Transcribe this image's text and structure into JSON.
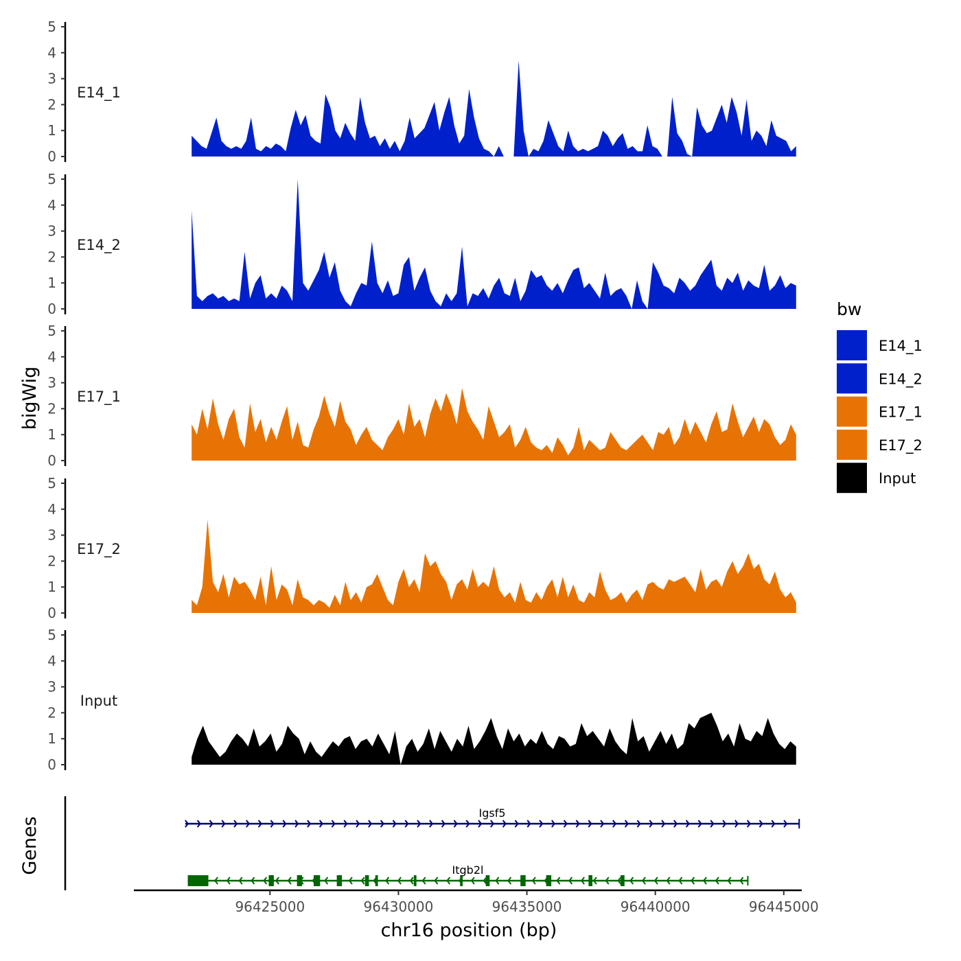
{
  "colors": {
    "E14": "#0020cc",
    "E17": "#e87305",
    "Input": "#000000",
    "gene_igsf5": "#00007a",
    "gene_itgb2l": "#006600"
  },
  "chart_data": {
    "type": "area",
    "title": "",
    "ylabel": "bigWig",
    "genes_label": "Genes",
    "xlabel": "chr16 position (bp)",
    "xlim": [
      96419700,
      96445700
    ],
    "ylim": [
      0,
      5.2
    ],
    "x_ticks": [
      96425000,
      96430000,
      96435000,
      96440000,
      96445000
    ],
    "x_tick_labels": [
      "96425000",
      "96430000",
      "96435000",
      "96440000",
      "96445000"
    ],
    "y_ticks": [
      0,
      1,
      2,
      3,
      4,
      5
    ],
    "y_tick_labels": [
      "0",
      "1",
      "2",
      "3",
      "4",
      "5"
    ],
    "x_start": 96421950,
    "x_end": 96445480,
    "series": [
      {
        "name": "E14_1",
        "group": "E14",
        "start": 96421950,
        "values": [
          0.8,
          0.6,
          0.4,
          0.3,
          0.9,
          1.5,
          0.6,
          0.4,
          0.3,
          0.4,
          0.3,
          0.6,
          1.5,
          0.3,
          0.2,
          0.4,
          0.3,
          0.5,
          0.4,
          0.2,
          1.1,
          1.8,
          1.2,
          1.6,
          0.8,
          0.6,
          0.5,
          2.4,
          1.9,
          1.0,
          0.7,
          1.3,
          0.9,
          0.6,
          2.3,
          1.3,
          0.7,
          0.8,
          0.4,
          0.7,
          0.3,
          0.6,
          0.2,
          0.6,
          1.5,
          0.7,
          0.9,
          1.1,
          1.6,
          2.1,
          1.0,
          1.7,
          2.3,
          1.2,
          0.5,
          0.8,
          2.6,
          1.5,
          0.7,
          0.3,
          0.2,
          0.0,
          0.4,
          0.0,
          0.0,
          0.0,
          3.7,
          1.0,
          0.0,
          0.3,
          0.2,
          0.6,
          1.4,
          0.9,
          0.4,
          0.2,
          1.0,
          0.4,
          0.2,
          0.3,
          0.2,
          0.3,
          0.4,
          1.0,
          0.8,
          0.4,
          0.7,
          0.9,
          0.3,
          0.4,
          0.2,
          0.2,
          1.2,
          0.4,
          0.3,
          0.0,
          0.0,
          2.3,
          0.9,
          0.6,
          0.1,
          0.0,
          1.9,
          1.2,
          0.9,
          1.0,
          1.5,
          2.0,
          1.3,
          2.3,
          1.7,
          0.8,
          2.2,
          0.6,
          1.0,
          0.8,
          0.4,
          1.4,
          0.8,
          0.7,
          0.6,
          0.2,
          0.4
        ]
      },
      {
        "name": "E14_2",
        "group": "E14",
        "start": 96421950,
        "values": [
          3.8,
          0.5,
          0.3,
          0.5,
          0.6,
          0.4,
          0.5,
          0.3,
          0.4,
          0.3,
          2.2,
          0.4,
          1.0,
          1.3,
          0.4,
          0.6,
          0.4,
          0.9,
          0.7,
          0.3,
          5.0,
          1.0,
          0.7,
          1.1,
          1.5,
          2.2,
          1.2,
          1.8,
          0.7,
          0.3,
          0.1,
          0.6,
          1.0,
          0.9,
          2.6,
          1.0,
          0.6,
          1.1,
          0.5,
          0.6,
          1.7,
          2.0,
          0.7,
          1.2,
          1.6,
          0.7,
          0.3,
          0.1,
          0.6,
          0.3,
          0.6,
          2.4,
          0.1,
          0.6,
          0.5,
          0.8,
          0.4,
          0.9,
          1.2,
          0.6,
          0.5,
          1.2,
          0.3,
          0.7,
          1.5,
          1.2,
          1.3,
          0.9,
          0.7,
          1.0,
          0.6,
          1.1,
          1.5,
          1.6,
          0.8,
          1.0,
          0.7,
          0.4,
          1.4,
          0.5,
          0.7,
          0.8,
          0.5,
          0.0,
          1.1,
          0.3,
          0.0,
          1.8,
          1.4,
          0.9,
          0.8,
          0.6,
          1.2,
          1.0,
          0.7,
          0.9,
          1.3,
          1.6,
          1.9,
          0.9,
          0.7,
          1.2,
          1.0,
          1.4,
          0.7,
          1.1,
          0.9,
          0.8,
          1.7,
          0.7,
          0.9,
          1.3,
          0.8,
          1.0,
          0.9
        ]
      },
      {
        "name": "E17_1",
        "group": "E17",
        "start": 96421950,
        "values": [
          1.4,
          1.0,
          2.0,
          1.2,
          2.4,
          1.4,
          0.8,
          1.6,
          2.0,
          0.9,
          0.5,
          2.2,
          1.1,
          1.6,
          0.7,
          1.3,
          0.8,
          1.5,
          2.1,
          0.8,
          1.5,
          0.6,
          0.5,
          1.2,
          1.7,
          2.5,
          1.8,
          1.3,
          2.3,
          1.5,
          1.2,
          0.6,
          1.0,
          1.3,
          0.8,
          0.6,
          0.4,
          0.9,
          1.2,
          1.6,
          1.0,
          2.2,
          1.3,
          1.6,
          0.9,
          1.8,
          2.4,
          1.9,
          2.6,
          2.1,
          1.4,
          2.8,
          1.9,
          1.5,
          1.2,
          0.8,
          2.1,
          1.5,
          0.9,
          1.1,
          1.4,
          0.5,
          0.8,
          1.3,
          0.7,
          0.5,
          0.4,
          0.6,
          0.3,
          0.9,
          0.6,
          0.2,
          0.5,
          1.3,
          0.4,
          0.8,
          0.6,
          0.4,
          0.5,
          1.1,
          0.8,
          0.5,
          0.4,
          0.6,
          0.8,
          1.0,
          0.7,
          0.4,
          1.1,
          1.0,
          1.3,
          0.6,
          0.9,
          1.6,
          1.0,
          1.5,
          1.1,
          0.7,
          1.4,
          1.9,
          1.1,
          1.2,
          2.2,
          1.5,
          0.9,
          1.3,
          1.7,
          1.1,
          1.6,
          1.4,
          0.9,
          0.6,
          0.8,
          1.4,
          1.0
        ]
      },
      {
        "name": "E17_2",
        "group": "E17",
        "start": 96421950,
        "values": [
          0.5,
          0.3,
          1.0,
          3.6,
          1.2,
          0.8,
          1.5,
          0.6,
          1.4,
          1.1,
          1.2,
          0.9,
          0.5,
          1.4,
          0.3,
          1.8,
          0.5,
          1.1,
          0.9,
          0.3,
          1.3,
          0.6,
          0.5,
          0.3,
          0.5,
          0.4,
          0.2,
          0.7,
          0.3,
          1.2,
          0.5,
          0.8,
          0.4,
          1.0,
          1.1,
          1.5,
          1.0,
          0.5,
          0.3,
          1.2,
          1.7,
          1.0,
          1.3,
          0.8,
          2.3,
          1.8,
          2.0,
          1.5,
          1.2,
          0.5,
          1.1,
          1.3,
          0.9,
          1.7,
          1.0,
          1.2,
          1.0,
          1.8,
          0.9,
          0.6,
          0.8,
          0.4,
          1.2,
          0.5,
          0.4,
          0.8,
          0.5,
          1.0,
          1.3,
          0.6,
          1.4,
          0.6,
          1.1,
          0.5,
          0.4,
          0.8,
          0.6,
          1.6,
          0.9,
          0.5,
          0.6,
          0.8,
          0.4,
          0.7,
          0.9,
          0.5,
          1.1,
          1.2,
          1.0,
          0.9,
          1.3,
          1.2,
          1.3,
          1.4,
          1.1,
          0.8,
          1.7,
          0.9,
          1.2,
          1.3,
          1.0,
          1.6,
          2.0,
          1.5,
          1.8,
          2.3,
          1.7,
          1.9,
          1.3,
          1.1,
          1.6,
          0.9,
          0.6,
          0.8,
          0.4
        ]
      },
      {
        "name": "Input",
        "group": "Input",
        "start": 96421950,
        "values": [
          0.3,
          1.0,
          1.5,
          0.9,
          0.6,
          0.3,
          0.5,
          0.9,
          1.2,
          1.0,
          0.7,
          1.4,
          0.7,
          0.9,
          1.2,
          0.5,
          0.8,
          1.5,
          1.2,
          1.0,
          0.4,
          0.9,
          0.5,
          0.3,
          0.6,
          0.9,
          0.7,
          1.0,
          1.1,
          0.6,
          0.9,
          1.0,
          0.7,
          1.2,
          0.8,
          0.4,
          1.3,
          0.0,
          0.7,
          1.0,
          0.5,
          0.8,
          1.4,
          0.6,
          1.3,
          0.9,
          0.5,
          1.0,
          0.7,
          1.5,
          0.6,
          0.9,
          1.3,
          1.8,
          1.1,
          0.6,
          1.4,
          0.9,
          1.2,
          0.7,
          1.0,
          0.8,
          1.3,
          0.8,
          0.6,
          1.1,
          1.0,
          0.7,
          0.8,
          1.6,
          1.1,
          1.3,
          1.0,
          0.7,
          1.4,
          0.9,
          0.6,
          0.4,
          1.8,
          0.9,
          1.1,
          0.5,
          0.9,
          1.3,
          0.8,
          1.2,
          0.6,
          0.8,
          1.6,
          1.4,
          1.8,
          1.9,
          2.0,
          1.5,
          0.9,
          1.2,
          0.7,
          1.6,
          1.0,
          0.9,
          1.3,
          1.1,
          1.8,
          1.2,
          0.8,
          0.6,
          0.9,
          0.7
        ]
      }
    ],
    "genes": [
      {
        "name": "Igsf5",
        "strand": "+",
        "start": 96421700,
        "end": 96445600,
        "exons": []
      },
      {
        "name": "Itgb2l",
        "strand": "-",
        "start": 96421800,
        "end": 96443600,
        "exons": [
          [
            96421800,
            96422600
          ],
          [
            96424950,
            96425150
          ],
          [
            96426050,
            96426250
          ],
          [
            96426700,
            96426950
          ],
          [
            96427600,
            96427800
          ],
          [
            96428700,
            96428850
          ],
          [
            96429100,
            96429200
          ],
          [
            96430600,
            96430700
          ],
          [
            96432400,
            96432500
          ],
          [
            96433400,
            96433550
          ],
          [
            96434750,
            96434950
          ],
          [
            96435750,
            96435950
          ],
          [
            96437400,
            96437550
          ],
          [
            96438650,
            96438800
          ]
        ]
      }
    ],
    "legend": {
      "title": "bw",
      "position": "right",
      "entries": [
        {
          "label": "E14_1",
          "color_key": "E14"
        },
        {
          "label": "E14_2",
          "color_key": "E14"
        },
        {
          "label": "E17_1",
          "color_key": "E17"
        },
        {
          "label": "E17_2",
          "color_key": "E17"
        },
        {
          "label": "Input",
          "color_key": "Input"
        }
      ]
    }
  }
}
